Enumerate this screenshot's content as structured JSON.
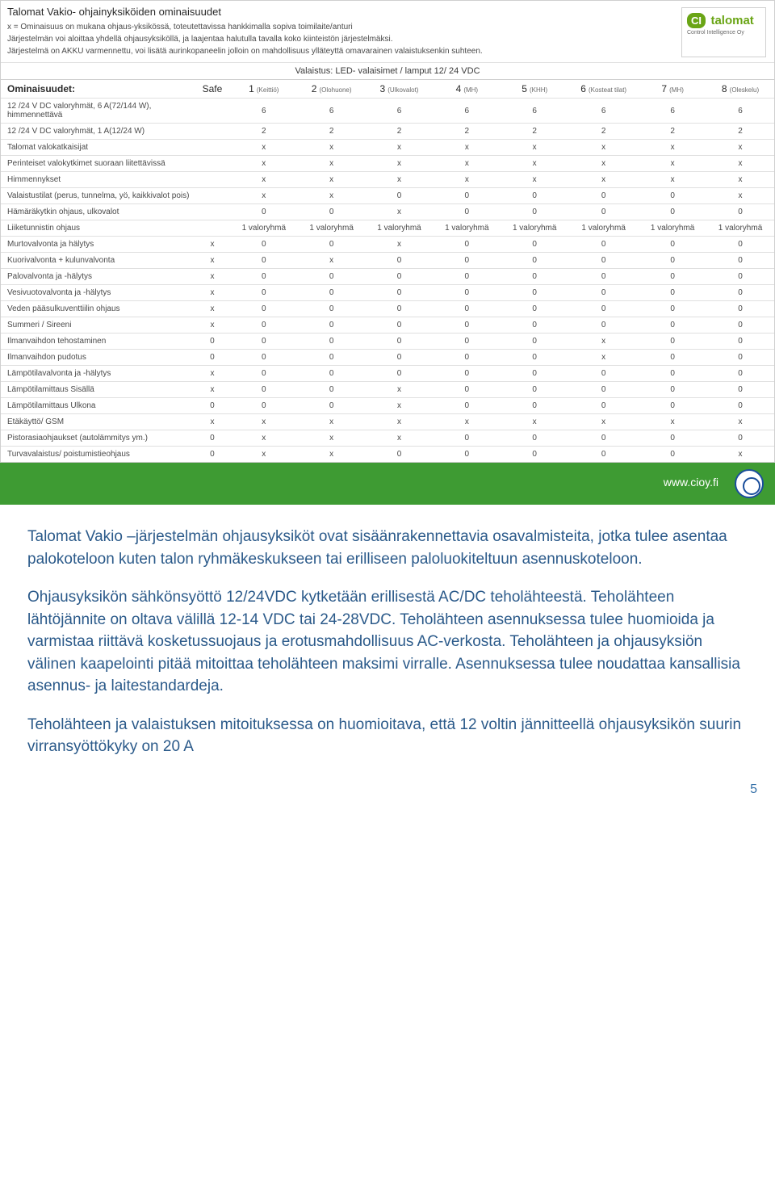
{
  "header": {
    "title": "Talomat Vakio- ohjainyksiköiden ominaisuudet",
    "line1": "x = Ominaisuus on mukana ohjaus-yksikössä, toteutettavissa hankkimalla sopiva toimilaite/anturi",
    "line2": "Järjestelmän voi aloittaa yhdellä ohjausyksiköllä, ja laajentaa halutulla tavalla koko kiinteistön järjestelmäksi.",
    "line3": "Järjestelmä on AKKU varmennettu, voi lisätä aurinkopaneelin jolloin on mahdollisuus ylläteyttä omavarainen valaistuksenkin suhteen.",
    "logo_ci": "CI",
    "logo_brand": "talomat",
    "logo_sub": "Control Intelligence Oy"
  },
  "section1": "Valaistus: LED- valaisimet / lamput 12/ 24 VDC",
  "columns_label": "Ominaisuudet:",
  "columns": [
    {
      "main": "Safe",
      "sub": ""
    },
    {
      "main": "1",
      "sub": "(Keittiö)"
    },
    {
      "main": "2",
      "sub": "(Olohuone)"
    },
    {
      "main": "3",
      "sub": "(Ulkovalot)"
    },
    {
      "main": "4",
      "sub": "(MH)"
    },
    {
      "main": "5",
      "sub": "(KHH)"
    },
    {
      "main": "6",
      "sub": "(Kosteat tilat)"
    },
    {
      "main": "7",
      "sub": "(MH)"
    },
    {
      "main": "8",
      "sub": "(Oleskelu)"
    }
  ],
  "rows": [
    {
      "label": "12 /24 V DC valoryhmät, 6 A(72/144 W), himmennettävä",
      "v": [
        "",
        "6",
        "6",
        "6",
        "6",
        "6",
        "6",
        "6",
        "6"
      ]
    },
    {
      "label": "12 /24 V DC valoryhmät, 1 A(12/24 W)",
      "v": [
        "",
        "2",
        "2",
        "2",
        "2",
        "2",
        "2",
        "2",
        "2"
      ]
    },
    {
      "label": "Talomat valokatkaisijat",
      "v": [
        "",
        "x",
        "x",
        "x",
        "x",
        "x",
        "x",
        "x",
        "x"
      ]
    },
    {
      "label": "Perinteiset valokytkimet suoraan liitettävissä",
      "v": [
        "",
        "x",
        "x",
        "x",
        "x",
        "x",
        "x",
        "x",
        "x"
      ]
    },
    {
      "label": "Himmennykset",
      "v": [
        "",
        "x",
        "x",
        "x",
        "x",
        "x",
        "x",
        "x",
        "x"
      ]
    },
    {
      "label": "Valaistustilat (perus, tunnelma, yö, kaikkivalot pois)",
      "v": [
        "",
        "x",
        "x",
        "0",
        "0",
        "0",
        "0",
        "0",
        "x"
      ]
    },
    {
      "label": "Hämäräkytkin ohjaus, ulkovalot",
      "v": [
        "",
        "0",
        "0",
        "x",
        "0",
        "0",
        "0",
        "0",
        "0"
      ]
    },
    {
      "label": "Liiketunnistin ohjaus",
      "v": [
        "",
        "1 valoryhmä",
        "1 valoryhmä",
        "1 valoryhmä",
        "1 valoryhmä",
        "1 valoryhmä",
        "1 valoryhmä",
        "1 valoryhmä",
        "1 valoryhmä"
      ]
    },
    {
      "label": "Murtovalvonta ja hälytys",
      "v": [
        "x",
        "0",
        "0",
        "x",
        "0",
        "0",
        "0",
        "0",
        "0"
      ]
    },
    {
      "label": "Kuorivalvonta + kulunvalvonta",
      "v": [
        "x",
        "0",
        "x",
        "0",
        "0",
        "0",
        "0",
        "0",
        "0"
      ]
    },
    {
      "label": "Palovalvonta ja -hälytys",
      "v": [
        "x",
        "0",
        "0",
        "0",
        "0",
        "0",
        "0",
        "0",
        "0"
      ]
    },
    {
      "label": "Vesivuotovalvonta ja -hälytys",
      "v": [
        "x",
        "0",
        "0",
        "0",
        "0",
        "0",
        "0",
        "0",
        "0"
      ]
    },
    {
      "label": "Veden pääsulkuventtiilin ohjaus",
      "v": [
        "x",
        "0",
        "0",
        "0",
        "0",
        "0",
        "0",
        "0",
        "0"
      ]
    },
    {
      "label": "Summeri / Sireeni",
      "v": [
        "x",
        "0",
        "0",
        "0",
        "0",
        "0",
        "0",
        "0",
        "0"
      ]
    },
    {
      "label": "Ilmanvaihdon tehostaminen",
      "v": [
        "0",
        "0",
        "0",
        "0",
        "0",
        "0",
        "x",
        "0",
        "0"
      ]
    },
    {
      "label": "Ilmanvaihdon pudotus",
      "v": [
        "0",
        "0",
        "0",
        "0",
        "0",
        "0",
        "x",
        "0",
        "0"
      ]
    },
    {
      "label": "Lämpötilavalvonta ja -hälytys",
      "v": [
        "x",
        "0",
        "0",
        "0",
        "0",
        "0",
        "0",
        "0",
        "0"
      ]
    },
    {
      "label": "Lämpötilamittaus Sisällä",
      "v": [
        "x",
        "0",
        "0",
        "x",
        "0",
        "0",
        "0",
        "0",
        "0"
      ]
    },
    {
      "label": "Lämpötilamittaus Ulkona",
      "v": [
        "0",
        "0",
        "0",
        "x",
        "0",
        "0",
        "0",
        "0",
        "0"
      ]
    },
    {
      "label": "Etäkäyttö/ GSM",
      "v": [
        "x",
        "x",
        "x",
        "x",
        "x",
        "x",
        "x",
        "x",
        "x"
      ]
    },
    {
      "label": "Pistorasiaohjaukset (autolämmitys ym.)",
      "v": [
        "0",
        "x",
        "x",
        "x",
        "0",
        "0",
        "0",
        "0",
        "0"
      ]
    },
    {
      "label": "Turvavalaistus/ poistumistieohjaus",
      "v": [
        "0",
        "x",
        "x",
        "0",
        "0",
        "0",
        "0",
        "0",
        "x"
      ]
    }
  ],
  "greenbar": {
    "url": "www.cioy.fi"
  },
  "body": {
    "p1": "Talomat Vakio –järjestelmän ohjausyksiköt ovat sisäänrakennettavia osavalmisteita, jotka tulee asentaa palokoteloon kuten talon ryhmäkeskukseen tai erilliseen paloluokiteltuun asennuskoteloon.",
    "p2": "Ohjausyksikön sähkönsyöttö 12/24VDC kytketään erillisestä AC/DC teholähteestä. Teholähteen lähtöjännite on oltava välillä 12-14 VDC tai 24-28VDC. Teholähteen asennuksessa tulee huomioida ja varmistaa riittävä kosketussuojaus ja erotusmahdollisuus AC-verkosta. Teholähteen ja ohjausyksiön välinen kaapelointi pitää mitoittaa teholähteen maksimi virralle. Asennuksessa tulee noudattaa kansallisia asennus- ja laitestandardeja.",
    "p3": "Teholähteen ja valaistuksen mitoituksessa on huomioitava, että 12 voltin jännitteellä ohjausyksikön suurin virransyöttökyky on 20 A"
  },
  "page_number": "5"
}
